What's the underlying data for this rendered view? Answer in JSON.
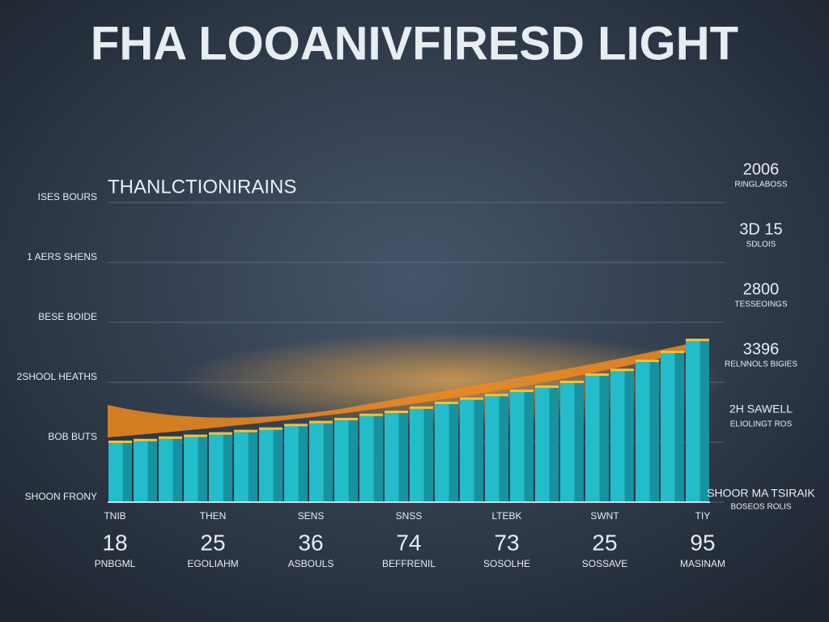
{
  "chart_data": {
    "type": "bar",
    "title": "FHA LOOANIVFIRESD LIGHT",
    "subtitle": "THANLCTIONIRAINS",
    "color": "#22bccb",
    "ylim": [
      0,
      5
    ],
    "yticks": [
      {
        "value": 0,
        "label": "SHOON FRONY"
      },
      {
        "value": 1,
        "label": "BOB BUTS"
      },
      {
        "value": 2,
        "label": "2SHOOL HEATHS"
      },
      {
        "value": 3,
        "label": "BESE BOIDE"
      },
      {
        "value": 4,
        "label": "1 AERS SHENS"
      },
      {
        "value": 5,
        "label": "ISES BOURS"
      }
    ],
    "grid": true,
    "values": [
      1.0,
      1.03,
      1.07,
      1.1,
      1.14,
      1.18,
      1.22,
      1.28,
      1.33,
      1.38,
      1.45,
      1.5,
      1.57,
      1.65,
      1.72,
      1.78,
      1.85,
      1.92,
      2.0,
      2.12,
      2.2,
      2.35,
      2.5,
      2.7
    ],
    "right_labels": [
      {
        "text": "SHOOR MA TSIRAIK",
        "subtext": "BOSEOS ROLIS"
      },
      {
        "text": "2H SAWELL",
        "subtext": "ELIOLINGT ROS"
      },
      {
        "text": "3396",
        "subtext": "RELNNOLS BIGIES"
      },
      {
        "text": "2800",
        "subtext": "TESSEOINGS"
      },
      {
        "text": "3D 15",
        "subtext": "SDLOIS"
      },
      {
        "text": "2006",
        "subtext": "RINGLABOSS"
      }
    ],
    "groups": [
      {
        "label": "TNIB",
        "number": "18",
        "caption": "PNBGML"
      },
      {
        "label": "THEN",
        "number": "25",
        "caption": "EGOLIAHM"
      },
      {
        "label": "SENS",
        "number": "36",
        "caption": "ASBOULS"
      },
      {
        "label": "SNSS",
        "number": "74",
        "caption": "BEFFRENIL"
      },
      {
        "label": "LTEBK",
        "number": "73",
        "caption": "SOSOLHE"
      },
      {
        "label": "SWNT",
        "number": "25",
        "caption": "SOSSAVE"
      },
      {
        "label": "TIY",
        "number": "95",
        "caption": "MASINAM"
      }
    ]
  }
}
